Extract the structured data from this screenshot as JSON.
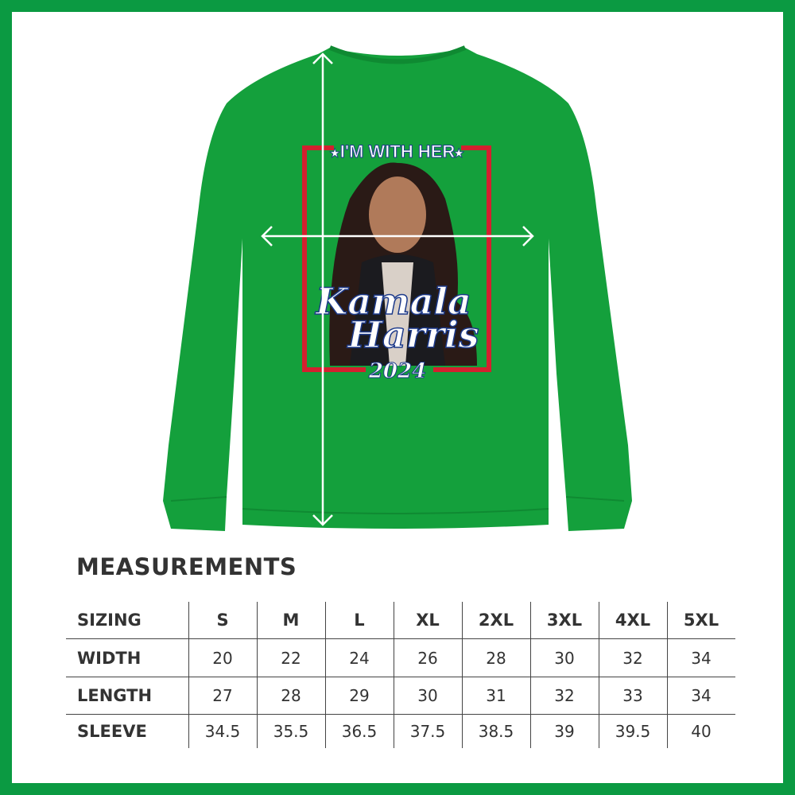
{
  "colors": {
    "border": "#0b9a42",
    "sweater": "#14a03c",
    "frame_red": "#d4202f",
    "text": "#333333"
  },
  "design": {
    "top_text": "I'M WITH HER",
    "name_line1": "Kamala",
    "name_line2": "Harris",
    "year": "2024"
  },
  "measurements": {
    "title": "MEASUREMENTS",
    "header": [
      "SIZING",
      "S",
      "M",
      "L",
      "XL",
      "2XL",
      "3XL",
      "4XL",
      "5XL"
    ],
    "rows": [
      {
        "label": "WIDTH",
        "values": [
          "20",
          "22",
          "24",
          "26",
          "28",
          "30",
          "32",
          "34"
        ]
      },
      {
        "label": "LENGTH",
        "values": [
          "27",
          "28",
          "29",
          "30",
          "31",
          "32",
          "33",
          "34"
        ]
      },
      {
        "label": "SLEEVE",
        "values": [
          "34.5",
          "35.5",
          "36.5",
          "37.5",
          "38.5",
          "39",
          "39.5",
          "40"
        ]
      }
    ]
  }
}
